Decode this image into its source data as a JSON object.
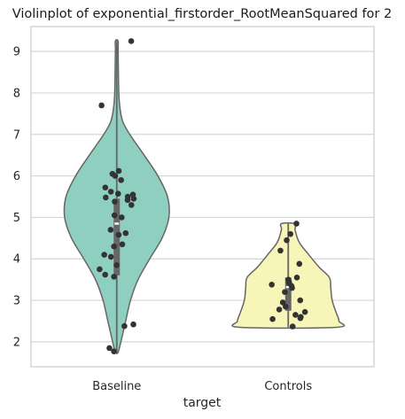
{
  "chart_data": {
    "type": "violin",
    "title": "Violinplot of exponential_firstorder_RootMeanSquared for 2",
    "xlabel": "target",
    "ylabel": "",
    "categories": [
      "Baseline",
      "Controls"
    ],
    "ylim": [
      1.4,
      9.6
    ],
    "yticks": [
      2,
      3,
      4,
      5,
      6,
      7,
      8,
      9
    ],
    "grid": "horizontal",
    "colors": {
      "Baseline": "#8ecfc0",
      "Controls": "#f7f6b8",
      "outline": "#666666",
      "point": "#333333",
      "grid": "#d5d5d5",
      "frame": "#cccccc"
    },
    "series": [
      {
        "category": "Baseline",
        "box": {
          "q1": 3.6,
          "median": 4.85,
          "q3": 5.45,
          "whisker_low": 1.75,
          "whisker_high": 9.25
        },
        "points": [
          9.25,
          7.7,
          6.12,
          6.05,
          6.0,
          5.9,
          5.72,
          5.62,
          5.57,
          5.55,
          5.5,
          5.48,
          5.45,
          5.42,
          5.38,
          5.3,
          5.05,
          5.0,
          4.7,
          4.62,
          4.58,
          4.35,
          4.3,
          4.1,
          4.05,
          3.85,
          3.75,
          3.62,
          3.57,
          2.42,
          2.38,
          1.85,
          1.77
        ],
        "violin_profile": [
          [
            1.75,
            0.02
          ],
          [
            2.0,
            0.06
          ],
          [
            2.5,
            0.13
          ],
          [
            3.0,
            0.2
          ],
          [
            3.5,
            0.31
          ],
          [
            4.0,
            0.48
          ],
          [
            4.5,
            0.66
          ],
          [
            5.0,
            0.76
          ],
          [
            5.5,
            0.74
          ],
          [
            6.0,
            0.6
          ],
          [
            6.5,
            0.4
          ],
          [
            7.0,
            0.19
          ],
          [
            7.3,
            0.09
          ],
          [
            7.6,
            0.05
          ],
          [
            8.0,
            0.03
          ],
          [
            9.0,
            0.02
          ],
          [
            9.25,
            0.02
          ]
        ]
      },
      {
        "category": "Controls",
        "box": {
          "q1": 2.75,
          "median": 3.32,
          "q3": 3.55,
          "whisker_low": 2.35,
          "whisker_high": 4.85
        },
        "points": [
          4.85,
          4.6,
          4.45,
          4.2,
          3.88,
          3.55,
          3.5,
          3.45,
          3.42,
          3.38,
          3.35,
          3.3,
          3.2,
          3.0,
          2.95,
          2.85,
          2.78,
          2.72,
          2.65,
          2.6,
          2.57,
          2.55,
          2.37
        ],
        "violin_profile": [
          [
            2.35,
            0.7
          ],
          [
            2.5,
            0.74
          ],
          [
            2.7,
            0.7
          ],
          [
            3.0,
            0.64
          ],
          [
            3.3,
            0.62
          ],
          [
            3.55,
            0.6
          ],
          [
            3.8,
            0.45
          ],
          [
            4.1,
            0.3
          ],
          [
            4.4,
            0.16
          ],
          [
            4.7,
            0.1
          ],
          [
            4.85,
            0.1
          ]
        ]
      }
    ]
  }
}
